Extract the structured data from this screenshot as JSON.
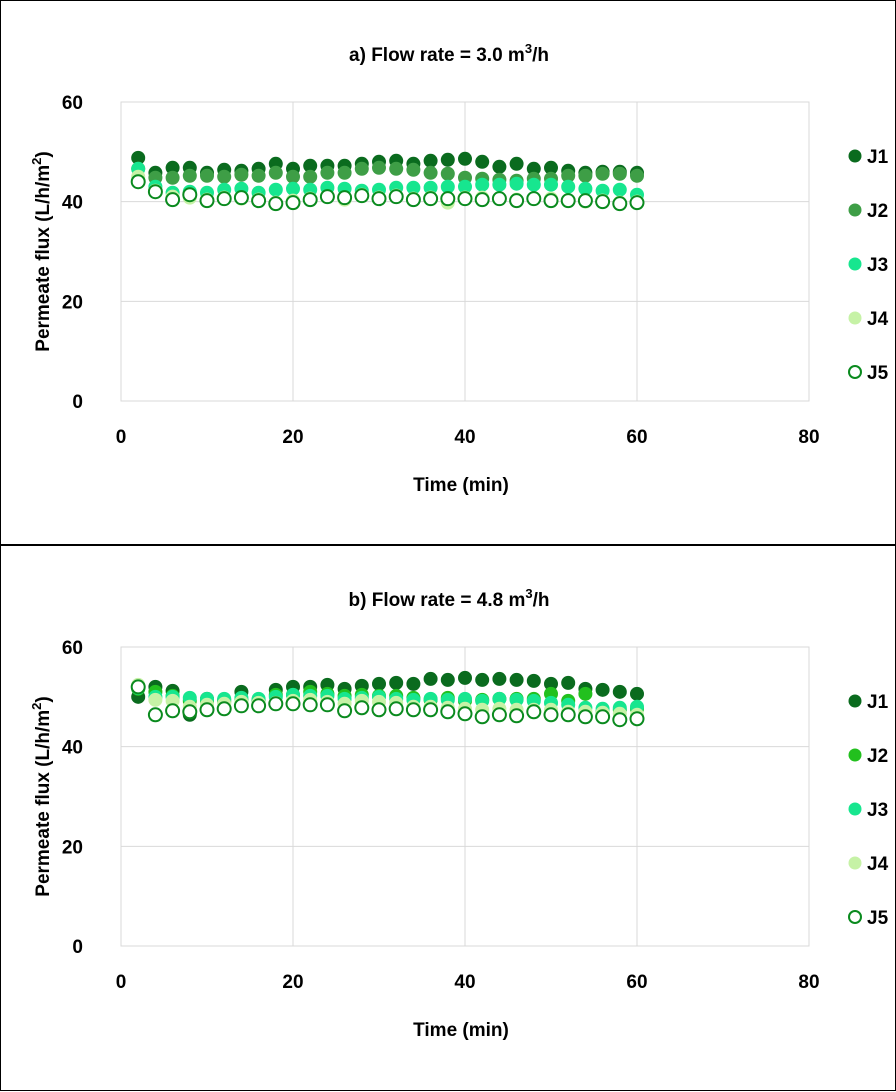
{
  "chart_data": [
    {
      "type": "scatter",
      "title": "a) Flow rate = 3.0 m",
      "title_sup": "3",
      "title_suffix": "/h",
      "xlabel": "Time (min)",
      "ylabel": "Permeate flux (L/h/m",
      "ylabel_sup": "2",
      "ylabel_suffix": ")",
      "xlim": [
        0,
        80
      ],
      "ylim": [
        0,
        60
      ],
      "xticks": [
        "0",
        "20",
        "40",
        "60",
        "80"
      ],
      "yticks": [
        "0",
        "20",
        "40",
        "60"
      ],
      "grid": true,
      "legend_position": "right",
      "x": [
        2,
        4,
        6,
        8,
        10,
        12,
        14,
        16,
        18,
        20,
        22,
        24,
        26,
        28,
        30,
        32,
        34,
        36,
        38,
        40,
        42,
        44,
        46,
        48,
        50,
        52,
        54,
        56,
        58,
        60
      ],
      "series": [
        {
          "name": "J1",
          "color": "#0a6b1e",
          "hollow": false,
          "values": [
            48.8,
            45.8,
            46.8,
            46.8,
            45.8,
            46.4,
            46.2,
            46.6,
            47.6,
            46.6,
            47.2,
            47.2,
            47.2,
            47.6,
            48.0,
            48.2,
            47.6,
            48.2,
            48.4,
            48.6,
            48.0,
            47.0,
            47.6,
            46.6,
            46.8,
            46.2,
            45.8,
            46.0,
            46.0,
            45.8
          ]
        },
        {
          "name": "J2",
          "color": "#3e9e46",
          "hollow": false,
          "values": [
            46.6,
            44.8,
            44.8,
            45.2,
            45.2,
            45.0,
            45.4,
            45.2,
            45.8,
            45.0,
            45.0,
            45.8,
            45.8,
            46.6,
            46.8,
            46.6,
            46.4,
            45.8,
            45.6,
            44.8,
            44.6,
            44.4,
            44.2,
            44.6,
            44.6,
            45.2,
            45.2,
            45.6,
            45.6,
            45.2
          ]
        },
        {
          "name": "J3",
          "color": "#17e68f",
          "hollow": false,
          "values": [
            46.6,
            43.0,
            41.8,
            42.0,
            41.8,
            42.4,
            42.6,
            41.8,
            42.4,
            42.6,
            42.4,
            42.8,
            42.6,
            42.2,
            42.4,
            42.8,
            42.8,
            42.8,
            43.0,
            43.0,
            43.4,
            43.4,
            43.6,
            43.4,
            43.4,
            43.0,
            42.6,
            42.2,
            42.4,
            41.4
          ]
        },
        {
          "name": "J4",
          "color": "#c6f2a6",
          "hollow": false,
          "values": [
            45.0,
            42.2,
            41.0,
            40.8,
            40.4,
            40.8,
            40.6,
            40.4,
            39.8,
            40.2,
            40.6,
            41.0,
            40.4,
            41.4,
            40.8,
            41.2,
            40.6,
            40.8,
            39.8,
            40.8,
            40.8,
            40.6,
            40.4,
            40.6,
            40.6,
            40.2,
            40.0,
            40.2,
            39.8,
            40.0
          ]
        },
        {
          "name": "J5",
          "color": "#0a8a1e",
          "hollow": true,
          "values": [
            44.0,
            42.0,
            40.4,
            41.4,
            40.2,
            40.6,
            40.8,
            40.2,
            39.6,
            39.8,
            40.4,
            41.0,
            40.8,
            41.2,
            40.6,
            41.0,
            40.4,
            40.6,
            40.6,
            40.6,
            40.4,
            40.6,
            40.2,
            40.6,
            40.2,
            40.2,
            40.2,
            40.0,
            39.6,
            39.8
          ]
        }
      ]
    },
    {
      "type": "scatter",
      "title": "b) Flow rate = 4.8 m",
      "title_sup": "3",
      "title_suffix": "/h",
      "xlabel": "Time (min)",
      "ylabel": "Permeate flux (L/h/m",
      "ylabel_sup": "2",
      "ylabel_suffix": ")",
      "xlim": [
        0,
        80
      ],
      "ylim": [
        0,
        60
      ],
      "xticks": [
        "0",
        "20",
        "40",
        "60",
        "80"
      ],
      "yticks": [
        "0",
        "20",
        "40",
        "60"
      ],
      "grid": true,
      "legend_position": "right",
      "x": [
        2,
        4,
        6,
        8,
        10,
        12,
        14,
        16,
        18,
        20,
        22,
        24,
        26,
        28,
        30,
        32,
        34,
        36,
        38,
        40,
        42,
        44,
        46,
        48,
        50,
        52,
        54,
        56,
        58,
        60
      ],
      "series": [
        {
          "name": "J1",
          "color": "#0a6b1e",
          "hollow": false,
          "values": [
            50.0,
            52.0,
            51.2,
            46.4,
            49.6,
            49.4,
            51.0,
            49.4,
            51.4,
            52.0,
            52.0,
            52.4,
            51.6,
            52.2,
            52.6,
            52.8,
            52.6,
            53.6,
            53.4,
            53.8,
            53.4,
            53.6,
            53.4,
            53.2,
            52.6,
            52.8,
            51.6,
            51.4,
            51.0,
            50.6
          ]
        },
        {
          "name": "J2",
          "color": "#22c01e",
          "hollow": false,
          "values": [
            51.6,
            51.0,
            50.2,
            49.2,
            49.2,
            49.0,
            49.4,
            49.2,
            50.4,
            50.4,
            51.0,
            50.6,
            50.2,
            50.4,
            50.2,
            50.2,
            49.8,
            49.4,
            49.8,
            49.2,
            49.4,
            49.6,
            49.6,
            49.6,
            50.6,
            49.2,
            50.6,
            47.0,
            47.4,
            47.6
          ]
        },
        {
          "name": "J3",
          "color": "#17e68f",
          "hollow": false,
          "values": [
            51.8,
            50.0,
            50.0,
            49.8,
            49.6,
            49.6,
            49.8,
            49.6,
            50.0,
            50.4,
            50.2,
            50.2,
            49.6,
            49.8,
            50.0,
            49.6,
            49.4,
            49.6,
            49.4,
            49.6,
            49.2,
            49.6,
            49.4,
            49.2,
            48.8,
            48.4,
            47.8,
            47.6,
            47.8,
            48.0
          ]
        },
        {
          "name": "J4",
          "color": "#c6f2a6",
          "hollow": false,
          "values": [
            52.4,
            49.4,
            49.2,
            48.0,
            48.4,
            48.6,
            49.0,
            48.8,
            48.8,
            49.2,
            49.4,
            49.0,
            48.6,
            49.2,
            49.0,
            48.8,
            48.0,
            48.0,
            47.8,
            47.6,
            47.4,
            47.6,
            47.4,
            47.4,
            47.4,
            47.0,
            47.0,
            46.8,
            46.6,
            46.4
          ]
        },
        {
          "name": "J5",
          "color": "#0a8a1e",
          "hollow": true,
          "values": [
            52.0,
            46.4,
            47.2,
            47.0,
            47.4,
            47.6,
            48.2,
            48.2,
            48.6,
            48.6,
            48.4,
            48.4,
            47.2,
            47.8,
            47.4,
            47.6,
            47.4,
            47.4,
            47.0,
            46.6,
            46.0,
            46.4,
            46.2,
            47.0,
            46.4,
            46.4,
            46.0,
            46.0,
            45.4,
            45.6
          ]
        }
      ]
    }
  ]
}
